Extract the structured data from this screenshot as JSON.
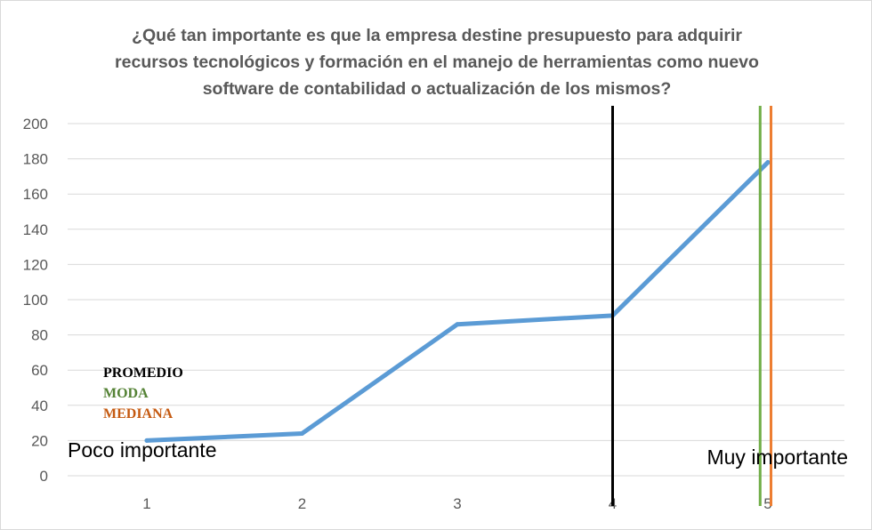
{
  "chart_data": {
    "type": "line",
    "title": "¿Qué tan importante es que la empresa destine presupuesto para adquirir recursos tecnológicos y formación en el manejo de herramientas como nuevo software de contabilidad o actualización de los mismos?",
    "title_lines": [
      "¿Qué tan importante es que la empresa destine presupuesto para adquirir",
      "recursos tecnológicos y formación en el manejo de herramientas como nuevo",
      "software de contabilidad o actualización de los mismos?"
    ],
    "categories": [
      "1",
      "2",
      "3",
      "4",
      "5"
    ],
    "series": [
      {
        "values": [
          20,
          24,
          86,
          91,
          178
        ],
        "color": "#5b9bd5"
      }
    ],
    "ylim": [
      0,
      200
    ],
    "yticks": [
      0,
      20,
      40,
      60,
      80,
      100,
      120,
      140,
      160,
      180,
      200
    ],
    "grid": true,
    "reference_lines": [
      {
        "name": "PROMEDIO",
        "x": 4.0,
        "color": "#000000"
      },
      {
        "name": "MODA",
        "x": 4.95,
        "color": "#70ad47"
      },
      {
        "name": "MEDIANA",
        "x": 5.02,
        "color": "#ed7d31"
      }
    ],
    "annotations": {
      "low_label": "Poco importante",
      "high_label": "Muy importante"
    },
    "legend": [
      {
        "label": "PROMEDIO",
        "color": "#000000"
      },
      {
        "label": "MODA",
        "color": "#548235"
      },
      {
        "label": "MEDIANA",
        "color": "#c55a11"
      }
    ],
    "legend_position": "bottom-left"
  }
}
